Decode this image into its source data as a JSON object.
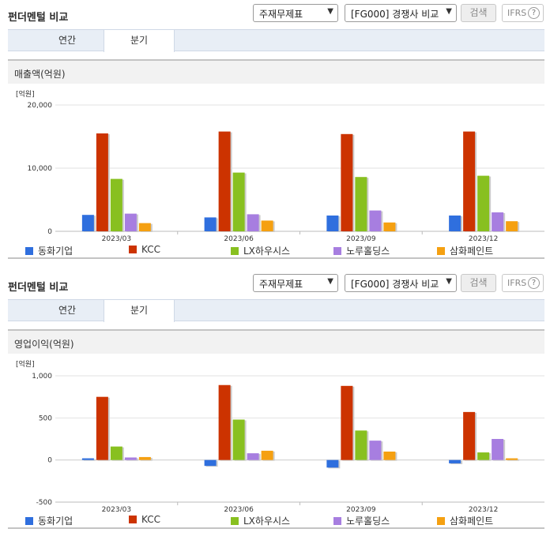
{
  "header": {
    "title": "펀더멘털 비교",
    "select1": "주재무제표",
    "select2": "[FG000] 경쟁사 비교",
    "search_label": "검색",
    "ifrs_label": "IFRS",
    "help_symbol": "?"
  },
  "tabs": [
    "연간",
    "분기"
  ],
  "active_tab": 1,
  "colors": {
    "동화기업": "#2f6fde",
    "KCC": "#cc3300",
    "LX하우시스": "#88c020",
    "노루홀딩스": "#a77ee0",
    "삼화페인트": "#f5a011"
  },
  "chart_data": [
    {
      "type": "bar",
      "title": "매출액(억원)",
      "unit_label": "[억원]",
      "categories": [
        "2023/03",
        "2023/06",
        "2023/09",
        "2023/12"
      ],
      "series": [
        {
          "name": "동화기업",
          "values": [
            2600,
            2200,
            2500,
            2500
          ]
        },
        {
          "name": "KCC",
          "values": [
            15500,
            15800,
            15400,
            15800
          ]
        },
        {
          "name": "LX하우시스",
          "values": [
            8300,
            9300,
            8600,
            8800
          ]
        },
        {
          "name": "노루홀딩스",
          "values": [
            2800,
            2700,
            3300,
            3000
          ]
        },
        {
          "name": "삼화페인트",
          "values": [
            1300,
            1700,
            1400,
            1600
          ]
        }
      ],
      "ylim": [
        0,
        20000
      ],
      "yticks": [
        0,
        10000,
        20000
      ],
      "ytick_labels": [
        "0",
        "10,000",
        "20,000"
      ]
    },
    {
      "type": "bar",
      "title": "영업이익(억원)",
      "unit_label": "[억원]",
      "categories": [
        "2023/03",
        "2023/06",
        "2023/09",
        "2023/12"
      ],
      "series": [
        {
          "name": "동화기업",
          "values": [
            20,
            -70,
            -90,
            -40
          ]
        },
        {
          "name": "KCC",
          "values": [
            750,
            890,
            880,
            570
          ]
        },
        {
          "name": "LX하우시스",
          "values": [
            160,
            480,
            350,
            90
          ]
        },
        {
          "name": "노루홀딩스",
          "values": [
            30,
            80,
            230,
            250
          ]
        },
        {
          "name": "삼화페인트",
          "values": [
            35,
            110,
            100,
            20
          ]
        }
      ],
      "ylim": [
        -500,
        1000
      ],
      "yticks": [
        -500,
        0,
        500,
        1000
      ],
      "ytick_labels": [
        "-500",
        "0",
        "500",
        "1,000"
      ]
    }
  ]
}
